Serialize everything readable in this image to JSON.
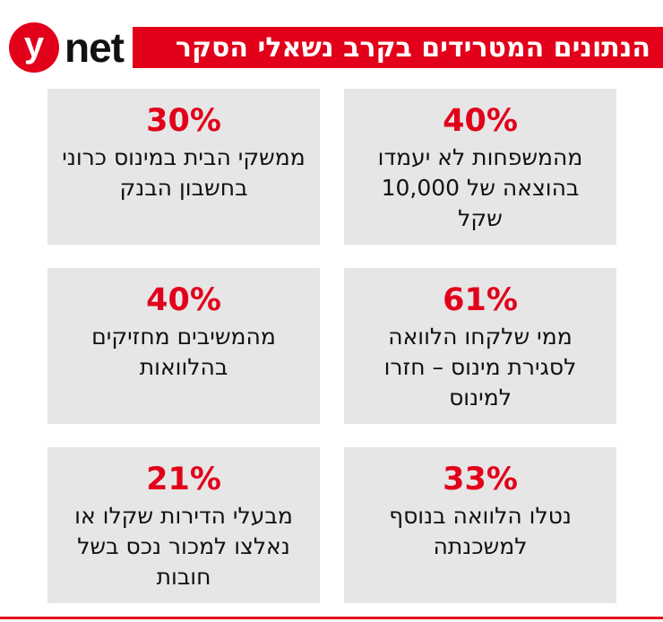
{
  "logo": {
    "y": "y",
    "net": "net"
  },
  "title": "הנתונים המטרידים בקרב נשאלי הסקר",
  "stats": [
    {
      "percent": "40%",
      "text": "מהמשפחות לא יעמדו בהוצאה של 10,000 שקל"
    },
    {
      "percent": "30%",
      "text": "ממשקי הבית במינוס כרוני בחשבון הבנק"
    },
    {
      "percent": "61%",
      "text": "ממי שלקחו הלוואה לסגירת מינוס – חזרו למינוס"
    },
    {
      "percent": "40%",
      "text": "מהמשיבים מחזיקים בהלוואות"
    },
    {
      "percent": "33%",
      "text": "נטלו הלוואה בנוסף למשכנתה"
    },
    {
      "percent": "21%",
      "text": "מבעלי הדירות שקלו או נאלצו למכור נכס בשל חובות"
    }
  ],
  "colors": {
    "accent": "#e2001a",
    "box_bg": "#e6e6e6",
    "text": "#111111"
  }
}
